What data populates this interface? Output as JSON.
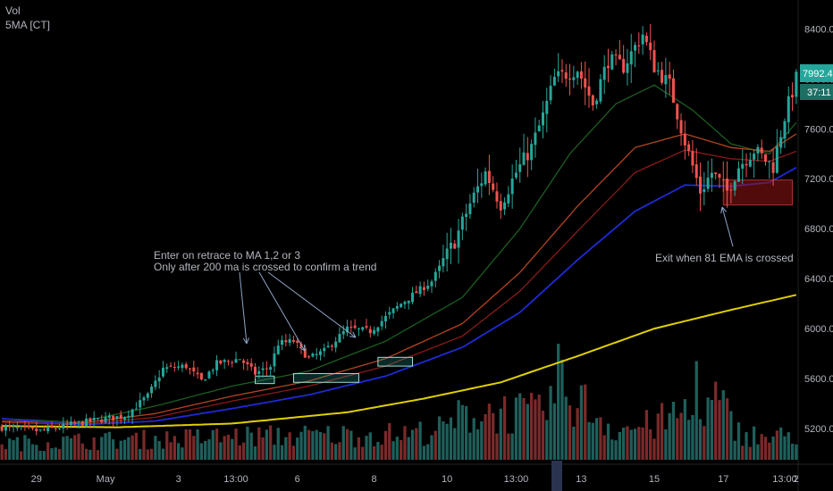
{
  "legend": {
    "line1": "Vol",
    "line2": "5MA [CT]"
  },
  "price_tag": {
    "value": "7992.47",
    "countdown": "37:11",
    "color": "#26a69a"
  },
  "annotations": {
    "entry_line1": "Enter on retrace to MA 1,2 or 3",
    "entry_line2": "Only after 200 ma is crossed to confirm a trend",
    "exit": "Exit when 81 EMA is crossed"
  },
  "colors": {
    "background": "#000000",
    "up": "#26a69a",
    "down": "#ef5350",
    "ma1": "#1b5e20",
    "ma2": "#b5441f",
    "ma3": "#8b1a1a",
    "ma4": "#1e2ad8",
    "ma200": "#e0d000",
    "axis_text": "#b2b5be"
  },
  "chart_data": {
    "type": "candlestick",
    "title": "",
    "y_axis": {
      "ticks": [
        5200,
        5600,
        6000,
        6400,
        6800,
        7200,
        7600,
        8000,
        8400
      ],
      "tick_labels": [
        "5200.00",
        "5600.00",
        "6000.00",
        "6400.00",
        "6800.00",
        "7200.00",
        "7600.00",
        "8000.00",
        "8400.00"
      ],
      "range": [
        4950,
        8560
      ]
    },
    "x_axis": {
      "tick_labels": [
        "29",
        "May",
        "3",
        "13:00",
        "6",
        "8",
        "10",
        "13:00",
        "13",
        "15",
        "17",
        "13:00",
        "2"
      ]
    },
    "price_key_points": [
      [
        0,
        5210
      ],
      [
        10,
        5180
      ],
      [
        18,
        5230
      ],
      [
        25,
        5270
      ],
      [
        32,
        5300
      ],
      [
        38,
        5460
      ],
      [
        42,
        5680
      ],
      [
        48,
        5700
      ],
      [
        52,
        5580
      ],
      [
        56,
        5720
      ],
      [
        62,
        5760
      ],
      [
        66,
        5640
      ],
      [
        70,
        5700
      ],
      [
        72,
        5880
      ],
      [
        76,
        5900
      ],
      [
        80,
        5760
      ],
      [
        84,
        5820
      ],
      [
        90,
        6000
      ],
      [
        96,
        5980
      ],
      [
        104,
        6200
      ],
      [
        112,
        6380
      ],
      [
        118,
        6700
      ],
      [
        122,
        7000
      ],
      [
        126,
        7250
      ],
      [
        130,
        7000
      ],
      [
        134,
        7250
      ],
      [
        138,
        7450
      ],
      [
        141,
        7700
      ],
      [
        144,
        8000
      ],
      [
        150,
        8080
      ],
      [
        154,
        7800
      ],
      [
        158,
        8150
      ],
      [
        162,
        8100
      ],
      [
        167,
        8360
      ],
      [
        170,
        8100
      ],
      [
        174,
        7950
      ],
      [
        178,
        7500
      ],
      [
        182,
        7100
      ],
      [
        185,
        7250
      ],
      [
        189,
        7100
      ],
      [
        192,
        7300
      ],
      [
        196,
        7430
      ],
      [
        201,
        7300
      ],
      [
        204,
        7700
      ],
      [
        207,
        8000
      ]
    ],
    "moving_averages": [
      {
        "name": "MA 1",
        "key_points": [
          [
            0,
            5280
          ],
          [
            20,
            5250
          ],
          [
            40,
            5380
          ],
          [
            60,
            5540
          ],
          [
            80,
            5660
          ],
          [
            100,
            5900
          ],
          [
            120,
            6250
          ],
          [
            135,
            6800
          ],
          [
            148,
            7400
          ],
          [
            160,
            7800
          ],
          [
            170,
            7950
          ],
          [
            180,
            7750
          ],
          [
            190,
            7480
          ],
          [
            200,
            7400
          ],
          [
            207,
            7650
          ]
        ]
      },
      {
        "name": "MA 2",
        "key_points": [
          [
            0,
            5260
          ],
          [
            20,
            5240
          ],
          [
            40,
            5320
          ],
          [
            60,
            5460
          ],
          [
            80,
            5580
          ],
          [
            100,
            5760
          ],
          [
            120,
            6040
          ],
          [
            135,
            6450
          ],
          [
            150,
            6980
          ],
          [
            165,
            7450
          ],
          [
            178,
            7560
          ],
          [
            190,
            7450
          ],
          [
            200,
            7420
          ],
          [
            207,
            7560
          ]
        ]
      },
      {
        "name": "MA 3",
        "key_points": [
          [
            0,
            5250
          ],
          [
            20,
            5230
          ],
          [
            40,
            5290
          ],
          [
            60,
            5420
          ],
          [
            80,
            5540
          ],
          [
            100,
            5700
          ],
          [
            120,
            5940
          ],
          [
            135,
            6300
          ],
          [
            150,
            6780
          ],
          [
            165,
            7250
          ],
          [
            178,
            7430
          ],
          [
            190,
            7360
          ],
          [
            200,
            7340
          ],
          [
            207,
            7420
          ]
        ]
      },
      {
        "name": "81 EMA",
        "key_points": [
          [
            0,
            5280
          ],
          [
            20,
            5230
          ],
          [
            40,
            5260
          ],
          [
            60,
            5360
          ],
          [
            80,
            5470
          ],
          [
            100,
            5620
          ],
          [
            120,
            5850
          ],
          [
            135,
            6130
          ],
          [
            150,
            6550
          ],
          [
            165,
            6940
          ],
          [
            178,
            7150
          ],
          [
            190,
            7140
          ],
          [
            200,
            7170
          ],
          [
            207,
            7290
          ]
        ]
      },
      {
        "name": "200 MA",
        "key_points": [
          [
            0,
            5220
          ],
          [
            30,
            5210
          ],
          [
            60,
            5240
          ],
          [
            90,
            5330
          ],
          [
            110,
            5440
          ],
          [
            130,
            5570
          ],
          [
            150,
            5780
          ],
          [
            170,
            6000
          ],
          [
            190,
            6150
          ],
          [
            207,
            6270
          ]
        ]
      }
    ],
    "volume_key_points": [
      [
        0,
        140
      ],
      [
        20,
        160
      ],
      [
        45,
        180
      ],
      [
        60,
        200
      ],
      [
        85,
        210
      ],
      [
        105,
        220
      ],
      [
        115,
        260
      ],
      [
        120,
        380
      ],
      [
        128,
        420
      ],
      [
        140,
        380
      ],
      [
        145,
        600
      ],
      [
        150,
        520
      ],
      [
        160,
        260
      ],
      [
        170,
        300
      ],
      [
        178,
        420
      ],
      [
        182,
        300
      ],
      [
        186,
        520
      ],
      [
        192,
        240
      ],
      [
        200,
        180
      ],
      [
        207,
        220
      ]
    ],
    "volume_spikes": [
      {
        "index": 145,
        "value": 1000
      },
      {
        "index": 181,
        "value": 850
      }
    ]
  }
}
